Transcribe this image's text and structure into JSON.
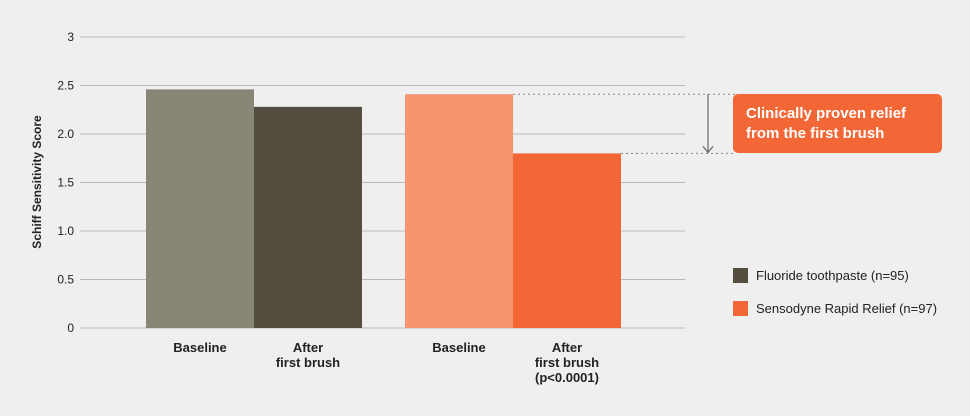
{
  "chart_data": {
    "type": "bar",
    "ylabel": "Schiff Sensitivity Score",
    "ylim": [
      0,
      3
    ],
    "yticks": [
      "0",
      "0.5",
      "1.0",
      "1.5",
      "2.0",
      "2.5",
      "3"
    ],
    "grid": true,
    "legend_placement": "bottom-right",
    "bars": [
      {
        "group": "Fluoride toothpaste (n=95)",
        "label": [
          "Baseline"
        ],
        "value": 2.46,
        "color": "#878677"
      },
      {
        "group": "Fluoride toothpaste (n=95)",
        "label": [
          "After",
          "first brush"
        ],
        "value": 2.28,
        "color": "#544d40"
      },
      {
        "group": "Sensodyne Rapid Relief (n=97)",
        "label": [
          "Baseline"
        ],
        "value": 2.41,
        "color": "#f5946e"
      },
      {
        "group": "Sensodyne Rapid Relief (n=97)",
        "label": [
          "After",
          "first brush",
          "(p<0.0001)"
        ],
        "value": 1.8,
        "color": "#f26735"
      }
    ],
    "legend": [
      {
        "name": "Fluoride toothpaste (n=95)",
        "color": "#544d40"
      },
      {
        "name": "Sensodyne Rapid Relief (n=97)",
        "color": "#f26735"
      }
    ],
    "annotation": {
      "lines": [
        "Clinically proven relief",
        "from the first brush"
      ],
      "from_value": 2.41,
      "to_value": 1.8,
      "color": "#f26735"
    }
  }
}
